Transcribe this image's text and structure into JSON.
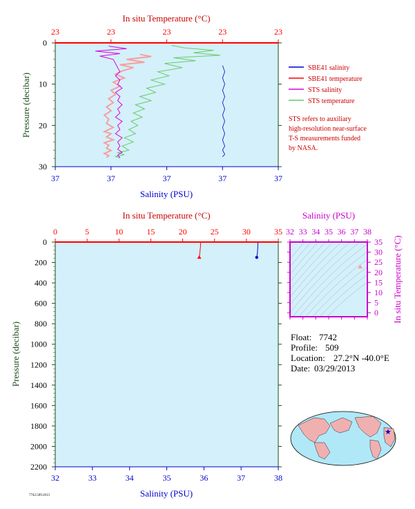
{
  "colors": {
    "plot_bg": "#d4f0fa",
    "temperature": "#ff0000",
    "temperature_axis_text": "#cc0000",
    "salinity": "#0000cc",
    "sts_salinity": "#dd00dd",
    "sts_temperature": "#66cc66",
    "sts_temperature_near": "#f4a0a0",
    "pressure_axis_text": "#1a4d1a",
    "ts_axis": "#cc00cc",
    "map_land": "#f0b0b0",
    "map_ocean": "#b0e8f8"
  },
  "legend": {
    "sbe41_salinity": "SBE41 salinity",
    "sbe41_temperature": "SBE41 temperature",
    "sts_salinity": "STS salinity",
    "sts_temperature": "STS temperature"
  },
  "note": [
    "STS refers to auxiliary",
    "high-resolution near-surface",
    "T-S measurements funded",
    "by NASA."
  ],
  "info": {
    "float_label": "Float:",
    "float_value": "7742",
    "profile_label": "Profile:",
    "profile_value": "509",
    "location_label": "Location:",
    "location_value": "27.2°N  -40.0°E",
    "date_label": "Date:",
    "date_value": "03/29/2013"
  },
  "footer_text": "7742.509.2013",
  "chart_data": [
    {
      "id": "near_surface_profile",
      "type": "line",
      "top_axis_label": "In situ Temperature (°C)",
      "top_ticks": [
        "23",
        "23",
        "23",
        "23",
        "23"
      ],
      "bottom_axis_label": "Salinity (PSU)",
      "bottom_ticks": [
        "37",
        "37",
        "37",
        "37",
        "37"
      ],
      "ylabel": "Pressure (decibar)",
      "y_ticks": [
        0,
        10,
        20,
        30
      ],
      "ylim": [
        0,
        30
      ],
      "y_inverted": true,
      "xlim_fraction": [
        0,
        1
      ],
      "series": [
        {
          "name": "STS temperature",
          "x_fraction_of_axis": [
            0.52,
            0.58,
            0.71,
            0.62,
            0.74,
            0.53,
            0.63,
            0.49,
            0.57,
            0.46,
            0.51,
            0.43,
            0.49,
            0.41,
            0.45,
            0.38,
            0.43,
            0.36,
            0.4,
            0.35,
            0.39,
            0.34,
            0.37,
            0.33,
            0.36,
            0.31,
            0.35,
            0.3,
            0.33,
            0.28,
            0.31,
            0.27,
            0.29
          ],
          "pressure": [
            0.6,
            1.2,
            1.8,
            2.4,
            3.0,
            3.6,
            4.3,
            5.0,
            6.0,
            7.0,
            8.0,
            9.0,
            10.0,
            11.0,
            12.0,
            13.0,
            14.0,
            15.0,
            16.0,
            17.0,
            18.0,
            19.0,
            20.0,
            21.0,
            22.0,
            23.0,
            24.0,
            25.0,
            26.0,
            26.6,
            27.1,
            27.5,
            27.9
          ]
        },
        {
          "name": "STS temperature (near surface)",
          "x_fraction_of_axis": [
            0.38,
            0.43,
            0.32,
            0.4,
            0.29,
            0.35,
            0.3,
            0.27,
            0.31,
            0.26,
            0.29,
            0.25,
            0.27,
            0.24,
            0.26,
            0.23,
            0.25,
            0.22,
            0.24,
            0.23,
            0.26,
            0.22,
            0.25,
            0.23,
            0.26,
            0.22,
            0.24,
            0.23,
            0.25,
            0.22,
            0.24,
            0.23
          ],
          "pressure": [
            2.8,
            3.3,
            4.0,
            4.7,
            5.3,
            6.0,
            6.8,
            7.6,
            8.5,
            9.5,
            10.5,
            11.5,
            12.5,
            13.5,
            14.5,
            15.5,
            16.5,
            17.5,
            18.5,
            19.5,
            20.5,
            21.5,
            22.0,
            22.8,
            23.5,
            24.2,
            24.8,
            25.5,
            26.1,
            26.8,
            27.3,
            27.8
          ]
        },
        {
          "name": "STS salinity",
          "x_fraction_of_axis": [
            0.24,
            0.32,
            0.18,
            0.29,
            0.2,
            0.26,
            0.27,
            0.28,
            0.29,
            0.27,
            0.29,
            0.28,
            0.3,
            0.27,
            0.29,
            0.28,
            0.3,
            0.28,
            0.29,
            0.27,
            0.3,
            0.28,
            0.29,
            0.27,
            0.3,
            0.28,
            0.29,
            0.28,
            0.3,
            0.28,
            0.29
          ],
          "pressure": [
            0.8,
            1.4,
            2.0,
            2.6,
            3.2,
            4.0,
            5.0,
            6.0,
            7.0,
            8.0,
            9.0,
            10.0,
            11.0,
            12.0,
            13.0,
            14.0,
            15.0,
            16.0,
            17.0,
            18.0,
            19.0,
            20.0,
            21.0,
            22.0,
            23.0,
            24.0,
            25.0,
            25.8,
            26.5,
            27.2,
            27.8
          ]
        },
        {
          "name": "SBE41 salinity",
          "x_fraction_of_axis": [
            0.75,
            0.76,
            0.75,
            0.76,
            0.75,
            0.76,
            0.75,
            0.76,
            0.75,
            0.76,
            0.75,
            0.76,
            0.75,
            0.76,
            0.75,
            0.76,
            0.75
          ],
          "pressure": [
            5.5,
            7.0,
            8.5,
            10.0,
            11.5,
            13.0,
            14.5,
            16.0,
            17.5,
            19.0,
            20.5,
            22.0,
            23.5,
            25.0,
            26.0,
            27.0,
            27.6
          ]
        }
      ]
    },
    {
      "id": "full_profile",
      "type": "line",
      "top_axis_label": "In situ Temperature (°C)",
      "top_ticks": [
        0,
        5,
        10,
        15,
        20,
        25,
        30,
        35
      ],
      "xlim_temperature": [
        0,
        35
      ],
      "bottom_axis_label": "Salinity (PSU)",
      "bottom_ticks": [
        32,
        33,
        34,
        35,
        36,
        37,
        38
      ],
      "xlim_salinity": [
        32,
        38
      ],
      "ylabel": "Pressure (decibar)",
      "y_ticks": [
        0,
        200,
        400,
        600,
        800,
        1000,
        1200,
        1400,
        1600,
        1800,
        2000,
        2200
      ],
      "ylim": [
        0,
        2200
      ],
      "y_inverted": true,
      "series": [
        {
          "name": "SBE41 temperature",
          "temperature": [
            22.8,
            22.8,
            22.7,
            22.6
          ],
          "pressure": [
            0,
            40,
            100,
            150
          ]
        },
        {
          "name": "SBE41 salinity",
          "salinity": [
            37.45,
            37.45,
            37.44,
            37.42
          ],
          "pressure": [
            0,
            40,
            100,
            150
          ]
        }
      ]
    },
    {
      "id": "ts_diagram",
      "type": "scatter",
      "top_axis_label": "Salinity (PSU)",
      "x_ticks": [
        32,
        33,
        34,
        35,
        36,
        37,
        38
      ],
      "xlim": [
        32,
        38
      ],
      "right_axis_label": "In situ Temperature (°C)",
      "y_ticks": [
        0,
        5,
        10,
        15,
        20,
        25,
        30,
        35
      ],
      "ylim": [
        -2,
        35
      ],
      "points": [
        {
          "salinity": 37.45,
          "temperature": 22.8
        },
        {
          "salinity": 37.44,
          "temperature": 22.6
        }
      ]
    }
  ]
}
